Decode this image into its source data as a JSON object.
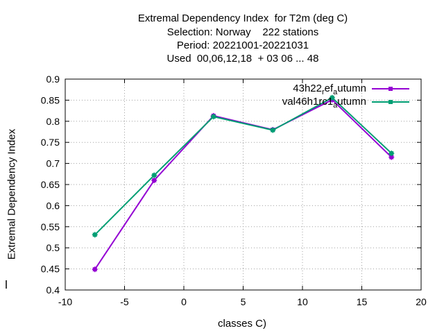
{
  "chart_data": {
    "type": "line",
    "title": [
      "Extremal Dependency Index  for T2m (deg C)",
      "Selection: Norway    222 stations",
      "Period: 20221001-20221031",
      "Used  00,06,12,18  + 03 06 ... 48"
    ],
    "xlabel": "classes C)",
    "ylabel": "Extremal Dependency Index",
    "xlim": [
      -10,
      20
    ],
    "ylim": [
      0.4,
      0.9
    ],
    "xticks": [
      -10,
      -5,
      0,
      5,
      10,
      15,
      20
    ],
    "yticks": [
      0.4,
      0.45,
      0.5,
      0.55,
      0.6,
      0.65,
      0.7,
      0.75,
      0.8,
      0.85,
      0.9
    ],
    "grid": true,
    "legend_position": "top-right",
    "series": [
      {
        "name": "43h22_ref_autumn",
        "legend_parts": [
          "43h22",
          "r",
          "ef",
          "a",
          "utumn"
        ],
        "color": "#9400d3",
        "x": [
          -7.5,
          -2.5,
          2.5,
          7.5,
          12.5,
          17.5
        ],
        "y": [
          0.449,
          0.66,
          0.813,
          0.78,
          0.851,
          0.715
        ]
      },
      {
        "name": "val46h1rc1_autumn",
        "legend_parts": [
          "val46h1rc1",
          "a",
          "utumn"
        ],
        "color": "#009e73",
        "x": [
          -7.5,
          -2.5,
          2.5,
          7.5,
          12.5,
          17.5
        ],
        "y": [
          0.531,
          0.672,
          0.811,
          0.779,
          0.856,
          0.724
        ]
      }
    ]
  }
}
